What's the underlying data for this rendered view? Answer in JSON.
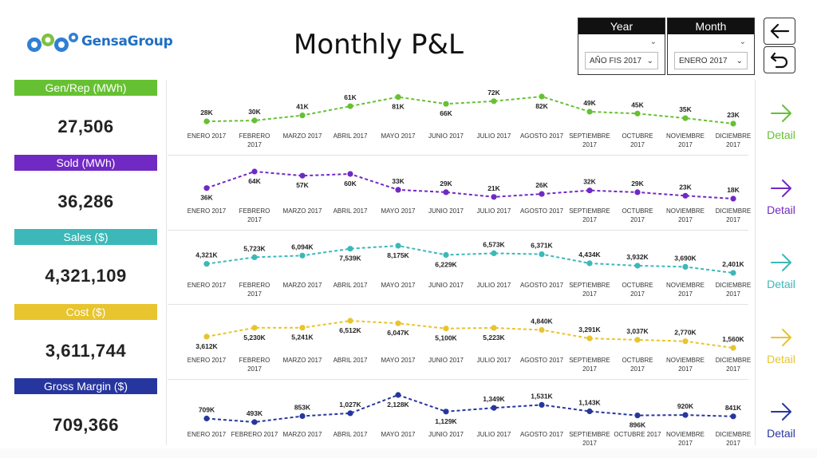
{
  "brand": {
    "name": "GensaGroup"
  },
  "page_title": "Monthly P&L",
  "filters": [
    {
      "header": "Year",
      "value": "AÑO FIS 2017"
    },
    {
      "header": "Month",
      "value": "ENERO 2017"
    }
  ],
  "nav": {
    "back_icon": "arrow-left-icon",
    "reset_icon": "undo-icon"
  },
  "colors": {
    "gen": "#66c132",
    "sold": "#7129c4",
    "sales": "#3cb8b8",
    "cost": "#e8c42e",
    "gm": "#27369e"
  },
  "kpis": [
    {
      "label": "Gen/Rep (MWh)",
      "value": "27,506",
      "color": "#66c132"
    },
    {
      "label": "Sold (MWh)",
      "value": "36,286",
      "color": "#7129c4"
    },
    {
      "label": "Sales ($)",
      "value": "4,321,109",
      "color": "#3cb8b8"
    },
    {
      "label": "Cost ($)",
      "value": "3,611,744",
      "color": "#e8c42e"
    },
    {
      "label": "Gross Margin ($)",
      "value": "709,366",
      "color": "#27369e"
    }
  ],
  "detail_label": "Detail",
  "chart_data": [
    {
      "type": "line",
      "name": "Gen/Rep (MWh)",
      "color": "#66c132",
      "categories": [
        [
          "ENERO 2017"
        ],
        [
          "FEBRERO",
          "2017"
        ],
        [
          "MARZO 2017"
        ],
        [
          "ABRIL 2017"
        ],
        [
          "MAYO 2017"
        ],
        [
          "JUNIO 2017"
        ],
        [
          "JULIO 2017"
        ],
        [
          "AGOSTO 2017"
        ],
        [
          "SEPTIEMBRE",
          "2017"
        ],
        [
          "OCTUBRE",
          "2017"
        ],
        [
          "NOVIEMBRE",
          "2017"
        ],
        [
          "DICIEMBRE",
          "2017"
        ]
      ],
      "values": [
        28,
        30,
        41,
        61,
        81,
        66,
        72,
        82,
        49,
        45,
        35,
        23
      ],
      "labels": [
        "28K",
        "30K",
        "41K",
        "61K",
        "81K",
        "66K",
        "72K",
        "82K",
        "49K",
        "45K",
        "35K",
        "23K"
      ],
      "label_pos": [
        "a",
        "a",
        "a",
        "a",
        "b",
        "b",
        "a",
        "b",
        "a",
        "a",
        "a",
        "a"
      ]
    },
    {
      "type": "line",
      "name": "Sold (MWh)",
      "color": "#7129c4",
      "categories": [
        [
          "ENERO 2017"
        ],
        [
          "FEBRERO",
          "2017"
        ],
        [
          "MARZO 2017"
        ],
        [
          "ABRIL 2017"
        ],
        [
          "MAYO 2017"
        ],
        [
          "JUNIO 2017"
        ],
        [
          "JULIO 2017"
        ],
        [
          "AGOSTO 2017"
        ],
        [
          "SEPTIEMBRE",
          "2017"
        ],
        [
          "OCTUBRE",
          "2017"
        ],
        [
          "NOVIEMBRE",
          "2017"
        ],
        [
          "DICIEMBRE",
          "2017"
        ]
      ],
      "values": [
        36,
        64,
        57,
        60,
        33,
        29,
        21,
        26,
        32,
        29,
        23,
        18
      ],
      "labels": [
        "36K",
        "64K",
        "57K",
        "60K",
        "33K",
        "29K",
        "21K",
        "26K",
        "32K",
        "29K",
        "23K",
        "18K"
      ],
      "label_pos": [
        "b",
        "b",
        "b",
        "b",
        "a",
        "a",
        "a",
        "a",
        "a",
        "a",
        "a",
        "a"
      ]
    },
    {
      "type": "line",
      "name": "Sales ($)",
      "color": "#3cb8b8",
      "categories": [
        [
          "ENERO 2017"
        ],
        [
          "FEBRERO",
          "2017"
        ],
        [
          "MARZO 2017"
        ],
        [
          "ABRIL 2017"
        ],
        [
          "MAYO 2017"
        ],
        [
          "JUNIO 2017"
        ],
        [
          "JULIO 2017"
        ],
        [
          "AGOSTO 2017"
        ],
        [
          "SEPTIEMBRE",
          "2017"
        ],
        [
          "OCTUBRE",
          "2017"
        ],
        [
          "NOVIEMBRE",
          "2017"
        ],
        [
          "DICIEMBRE",
          "2017"
        ]
      ],
      "values": [
        4321,
        5723,
        6094,
        7539,
        8175,
        6229,
        6573,
        6371,
        4434,
        3932,
        3690,
        2401
      ],
      "labels": [
        "4,321K",
        "5,723K",
        "6,094K",
        "7,539K",
        "8,175K",
        "6,229K",
        "6,573K",
        "6,371K",
        "4,434K",
        "3,932K",
        "3,690K",
        "2,401K"
      ],
      "label_pos": [
        "a",
        "a",
        "a",
        "b",
        "b",
        "b",
        "a",
        "a",
        "a",
        "a",
        "a",
        "a"
      ]
    },
    {
      "type": "line",
      "name": "Cost ($)",
      "color": "#e8c42e",
      "categories": [
        [
          "ENERO 2017"
        ],
        [
          "FEBRERO",
          "2017"
        ],
        [
          "MARZO 2017"
        ],
        [
          "ABRIL 2017"
        ],
        [
          "MAYO 2017"
        ],
        [
          "JUNIO 2017"
        ],
        [
          "JULIO 2017"
        ],
        [
          "AGOSTO 2017"
        ],
        [
          "SEPTIEMBRE",
          "2017"
        ],
        [
          "OCTUBRE",
          "2017"
        ],
        [
          "NOVIEMBRE",
          "2017"
        ],
        [
          "DICIEMBRE",
          "2017"
        ]
      ],
      "values": [
        3612,
        5230,
        5241,
        6512,
        6047,
        5100,
        5223,
        4840,
        3291,
        3037,
        2770,
        1560
      ],
      "labels": [
        "3,612K",
        "5,230K",
        "5,241K",
        "6,512K",
        "6,047K",
        "5,100K",
        "5,223K",
        "4,840K",
        "3,291K",
        "3,037K",
        "2,770K",
        "1,560K"
      ],
      "label_pos": [
        "b",
        "b",
        "b",
        "b",
        "b",
        "b",
        "b",
        "a",
        "a",
        "a",
        "a",
        "a"
      ]
    },
    {
      "type": "line",
      "name": "Gross Margin ($)",
      "color": "#27369e",
      "categories": [
        [
          "ENERO 2017"
        ],
        [
          "FEBRERO 2017"
        ],
        [
          "MARZO 2017"
        ],
        [
          "ABRIL 2017"
        ],
        [
          "MAYO 2017"
        ],
        [
          "JUNIO 2017"
        ],
        [
          "JULIO 2017"
        ],
        [
          "AGOSTO 2017"
        ],
        [
          "SEPTIEMBRE",
          "2017"
        ],
        [
          "OCTUBRE 2017"
        ],
        [
          "NOVIEMBRE",
          "2017"
        ],
        [
          "DICIEMBRE",
          "2017"
        ]
      ],
      "values": [
        709,
        493,
        853,
        1027,
        2128,
        1129,
        1349,
        1531,
        1143,
        896,
        920,
        841
      ],
      "labels": [
        "709K",
        "493K",
        "853K",
        "1,027K",
        "2,128K",
        "1,129K",
        "1,349K",
        "1,531K",
        "1,143K",
        "896K",
        "920K",
        "841K"
      ],
      "label_pos": [
        "a",
        "a",
        "a",
        "a",
        "b",
        "b",
        "a",
        "a",
        "a",
        "b",
        "a",
        "a"
      ]
    }
  ]
}
